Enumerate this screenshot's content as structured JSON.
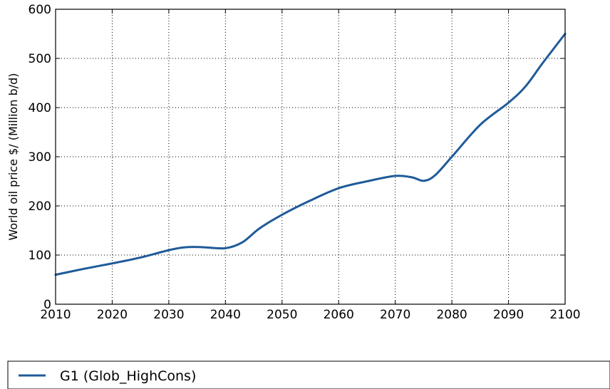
{
  "chart_data": {
    "type": "line",
    "title": "",
    "xlabel": "",
    "ylabel": "World oil price $/ (Million b/d)",
    "xlim": [
      2010,
      2100
    ],
    "ylim": [
      0,
      600
    ],
    "x_ticks": [
      2010,
      2020,
      2030,
      2040,
      2050,
      2060,
      2070,
      2080,
      2090,
      2100
    ],
    "y_ticks": [
      0,
      100,
      200,
      300,
      400,
      500,
      600
    ],
    "grid": true,
    "legend_position": "below",
    "series": [
      {
        "name": "G1 (Glob_HighCons)",
        "color": "#1f5b99",
        "x": [
          2010,
          2015,
          2020,
          2025,
          2030,
          2033,
          2036,
          2040,
          2043,
          2046,
          2050,
          2055,
          2060,
          2065,
          2070,
          2073,
          2075,
          2077,
          2080,
          2085,
          2090,
          2093,
          2096,
          2100
        ],
        "y": [
          60,
          72,
          83,
          95,
          110,
          116,
          116,
          114,
          126,
          154,
          182,
          211,
          236,
          250,
          261,
          258,
          251,
          262,
          300,
          365,
          410,
          443,
          490,
          550
        ]
      }
    ]
  }
}
